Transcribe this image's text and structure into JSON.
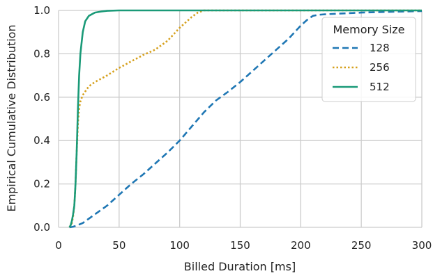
{
  "chart_data": {
    "type": "line",
    "xlabel": "Billed Duration [ms]",
    "ylabel": "Empirical Cumulative Distribution",
    "xlim": [
      0,
      300
    ],
    "ylim": [
      0,
      1.0
    ],
    "xticks": [
      "0",
      "50",
      "100",
      "150",
      "200",
      "250",
      "300"
    ],
    "xtick_values": [
      0,
      50,
      100,
      150,
      200,
      250,
      300
    ],
    "yticks": [
      "0.0",
      "0.2",
      "0.4",
      "0.6",
      "0.8",
      "1.0"
    ],
    "ytick_values": [
      0,
      0.2,
      0.4,
      0.6,
      0.8,
      1.0
    ],
    "grid": true,
    "legend": {
      "title": "Memory Size",
      "placement": "top-right"
    },
    "series": [
      {
        "name": "128",
        "color": "#1f77b4",
        "style": "dashed",
        "x": [
          9,
          12,
          15,
          20,
          30,
          40,
          50,
          60,
          70,
          80,
          90,
          100,
          110,
          120,
          130,
          140,
          150,
          160,
          170,
          180,
          190,
          200,
          205,
          210,
          215,
          220,
          230,
          250,
          270,
          300
        ],
        "y": [
          0,
          0.003,
          0.008,
          0.02,
          0.06,
          0.1,
          0.15,
          0.2,
          0.245,
          0.295,
          0.345,
          0.4,
          0.465,
          0.53,
          0.585,
          0.625,
          0.67,
          0.72,
          0.77,
          0.82,
          0.87,
          0.93,
          0.955,
          0.975,
          0.98,
          0.982,
          0.985,
          0.99,
          0.993,
          0.997
        ]
      },
      {
        "name": "256",
        "color": "#d6a01c",
        "style": "dotted",
        "x": [
          9,
          11,
          12,
          13,
          14,
          15,
          16,
          17,
          18,
          20,
          25,
          30,
          40,
          50,
          60,
          70,
          80,
          90,
          100,
          110,
          115,
          120,
          300
        ],
        "y": [
          0,
          0.02,
          0.05,
          0.1,
          0.2,
          0.35,
          0.48,
          0.55,
          0.58,
          0.61,
          0.65,
          0.67,
          0.7,
          0.735,
          0.765,
          0.795,
          0.82,
          0.86,
          0.92,
          0.97,
          0.99,
          1.0,
          1.0
        ]
      },
      {
        "name": "512",
        "color": "#1a9a78",
        "style": "solid",
        "x": [
          9,
          10,
          11,
          12,
          13,
          14,
          15,
          16,
          17,
          18,
          20,
          22,
          25,
          30,
          35,
          40,
          50,
          60,
          80,
          300
        ],
        "y": [
          0,
          0.01,
          0.03,
          0.06,
          0.1,
          0.2,
          0.35,
          0.55,
          0.7,
          0.8,
          0.9,
          0.95,
          0.975,
          0.99,
          0.995,
          0.998,
          1.0,
          1.0,
          1.0,
          1.0
        ]
      }
    ]
  }
}
